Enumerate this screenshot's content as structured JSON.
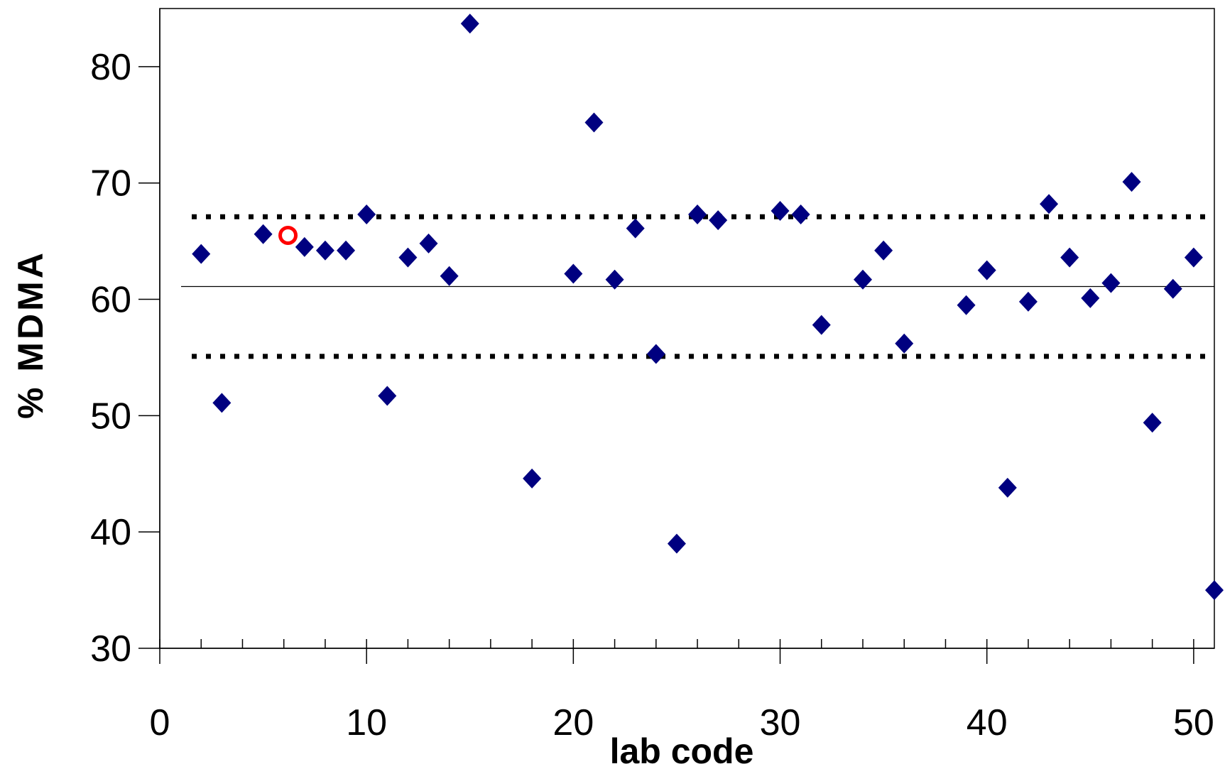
{
  "chart_data": {
    "type": "scatter",
    "xlabel": "lab code",
    "ylabel": "% MDMA",
    "xlim": [
      0,
      51
    ],
    "ylim": [
      30,
      85
    ],
    "x_ticks": [
      0,
      10,
      20,
      30,
      40,
      50
    ],
    "y_ticks": [
      30,
      40,
      50,
      60,
      70,
      80
    ],
    "grid": false,
    "series": [
      {
        "marker": "diamond",
        "color": "#000080",
        "points": [
          [
            2,
            63.9
          ],
          [
            3,
            51.1
          ],
          [
            5,
            65.6
          ],
          [
            7,
            64.5
          ],
          [
            8,
            64.2
          ],
          [
            9,
            64.2
          ],
          [
            10,
            67.3
          ],
          [
            11,
            51.7
          ],
          [
            12,
            63.6
          ],
          [
            13,
            64.8
          ],
          [
            14,
            62.0
          ],
          [
            15,
            83.7
          ],
          [
            18,
            44.6
          ],
          [
            20,
            62.2
          ],
          [
            21,
            75.2
          ],
          [
            22,
            61.7
          ],
          [
            23,
            66.1
          ],
          [
            24,
            55.3
          ],
          [
            25,
            39.0
          ],
          [
            26,
            67.3
          ],
          [
            27,
            66.8
          ],
          [
            30,
            67.6
          ],
          [
            31,
            67.3
          ],
          [
            32,
            57.8
          ],
          [
            34,
            61.7
          ],
          [
            35,
            64.2
          ],
          [
            36,
            56.2
          ],
          [
            39,
            59.5
          ],
          [
            40,
            62.5
          ],
          [
            41,
            43.8
          ],
          [
            42,
            59.8
          ],
          [
            43,
            68.2
          ],
          [
            44,
            63.6
          ],
          [
            45,
            60.1
          ],
          [
            46,
            61.4
          ],
          [
            47,
            70.1
          ],
          [
            48,
            49.4
          ],
          [
            49,
            60.9
          ],
          [
            50,
            63.6
          ],
          [
            51,
            35.0
          ]
        ]
      },
      {
        "marker": "circle-open",
        "color": "#ff0000",
        "points": [
          [
            6.2,
            65.5
          ]
        ]
      }
    ],
    "reference_lines": [
      {
        "y": 61.1,
        "style": "solid",
        "color": "#000000"
      },
      {
        "y": 67.1,
        "style": "dotted",
        "color": "#000000"
      },
      {
        "y": 55.1,
        "style": "dotted",
        "color": "#000000"
      }
    ]
  }
}
